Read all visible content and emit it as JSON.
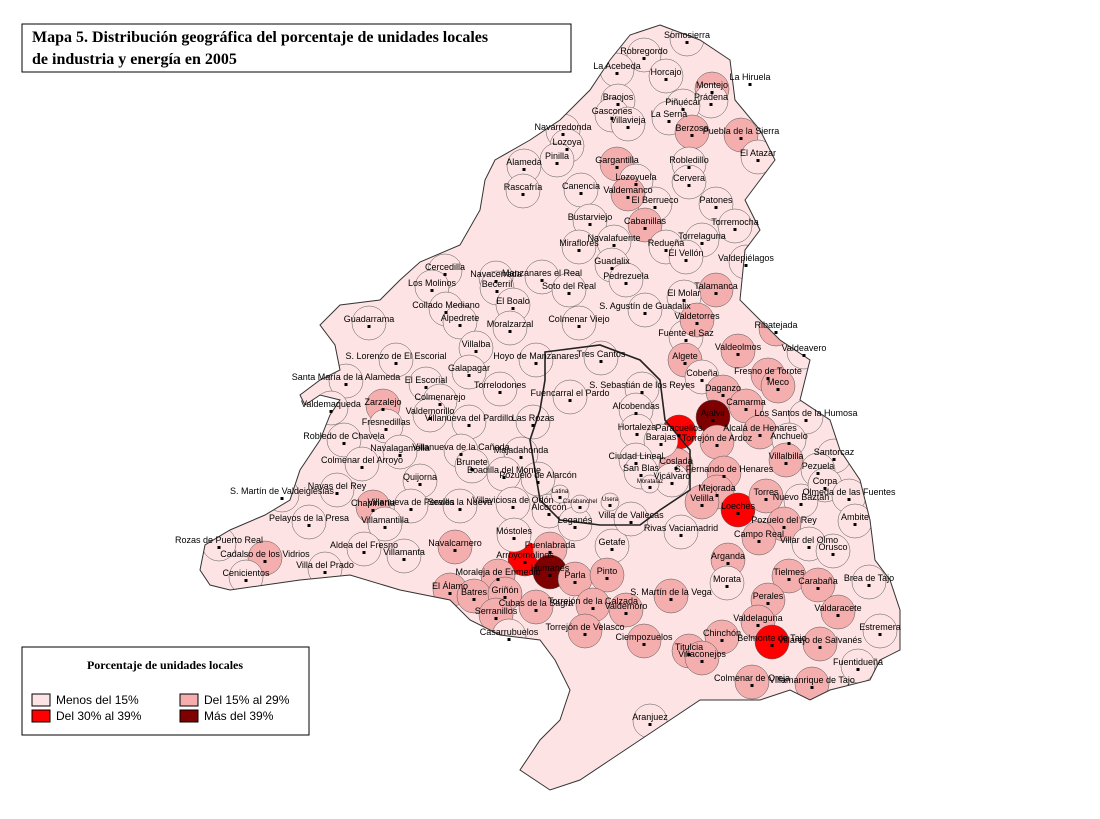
{
  "title": [
    "Mapa 5. Distribución geográfica del porcentaje de unidades locales",
    "de industria y energía en 2005"
  ],
  "legend": {
    "title": "Porcentaje de unidades locales",
    "classes": [
      {
        "label": "Menos del 15%",
        "color": "#fde3e3"
      },
      {
        "label": "Del 15% al 29%",
        "color": "#f5aeae"
      },
      {
        "label": "Del 30% al 39%",
        "color": "#ff0000"
      },
      {
        "label": "Más del 39%",
        "color": "#7f0000"
      }
    ]
  },
  "municipalities": [
    {
      "name": "Somosierra",
      "class": 0
    },
    {
      "name": "Robregordo",
      "class": 0
    },
    {
      "name": "La Acebeda",
      "class": 0
    },
    {
      "name": "Horcajo",
      "class": 0
    },
    {
      "name": "Braojos",
      "class": 0
    },
    {
      "name": "Montejo",
      "class": 1
    },
    {
      "name": "La Hiruela",
      "class": 0
    },
    {
      "name": "Prádena",
      "class": 0
    },
    {
      "name": "Gascones",
      "class": 0
    },
    {
      "name": "Villavieja",
      "class": 0
    },
    {
      "name": "Piñuécar",
      "class": 0
    },
    {
      "name": "La Serna",
      "class": 0
    },
    {
      "name": "Puebla de la Sierra",
      "class": 1
    },
    {
      "name": "Berzosa",
      "class": 1
    },
    {
      "name": "Navarredonda",
      "class": 0
    },
    {
      "name": "Gargantilla",
      "class": 1
    },
    {
      "name": "Lozoya",
      "class": 0
    },
    {
      "name": "Pinilla",
      "class": 0
    },
    {
      "name": "El Atazar",
      "class": 0
    },
    {
      "name": "Robledillo",
      "class": 0
    },
    {
      "name": "Alameda",
      "class": 0
    },
    {
      "name": "Cervera",
      "class": 0
    },
    {
      "name": "Lozoyuela",
      "class": 0
    },
    {
      "name": "Rascafría",
      "class": 0
    },
    {
      "name": "Canencia",
      "class": 0
    },
    {
      "name": "El Berrueco",
      "class": 0
    },
    {
      "name": "Patones",
      "class": 0
    },
    {
      "name": "Valdemanco",
      "class": 1
    },
    {
      "name": "Bustarviejo",
      "class": 0
    },
    {
      "name": "Cabanillas",
      "class": 1
    },
    {
      "name": "Torremocha",
      "class": 0
    },
    {
      "name": "Miraflores",
      "class": 0
    },
    {
      "name": "Navalafuente",
      "class": 0
    },
    {
      "name": "Redueña",
      "class": 0
    },
    {
      "name": "Torrelaguna",
      "class": 0
    },
    {
      "name": "Guadalix",
      "class": 0
    },
    {
      "name": "El Vellón",
      "class": 0
    },
    {
      "name": "Valdepiélagos",
      "class": 0
    },
    {
      "name": "Pedrezuela",
      "class": 0
    },
    {
      "name": "Talamanca",
      "class": 1
    },
    {
      "name": "El Molar",
      "class": 0
    },
    {
      "name": "S. Agustín de Guadalix",
      "class": 0
    },
    {
      "name": "Cercedilla",
      "class": 0
    },
    {
      "name": "Navacerrada",
      "class": 0
    },
    {
      "name": "Manzanares el Real",
      "class": 0
    },
    {
      "name": "Los Molinos",
      "class": 0
    },
    {
      "name": "Becerril",
      "class": 0
    },
    {
      "name": "Soto del Real",
      "class": 0
    },
    {
      "name": "Collado Mediano",
      "class": 0
    },
    {
      "name": "El Boalo",
      "class": 0
    },
    {
      "name": "Guadarrama",
      "class": 0
    },
    {
      "name": "Alpedrete",
      "class": 0
    },
    {
      "name": "Moralzarzal",
      "class": 0
    },
    {
      "name": "Colmenar Viejo",
      "class": 0
    },
    {
      "name": "Fuente el Saz",
      "class": 0
    },
    {
      "name": "Ribatejada",
      "class": 1
    },
    {
      "name": "Valdetorres",
      "class": 1
    },
    {
      "name": "Villalba",
      "class": 0
    },
    {
      "name": "Hoyo de Manzanares",
      "class": 0
    },
    {
      "name": "Tres Cantos",
      "class": 0
    },
    {
      "name": "Algete",
      "class": 1
    },
    {
      "name": "Valdeolmos",
      "class": 1
    },
    {
      "name": "Valdeavero",
      "class": 0
    },
    {
      "name": "S. Lorenzo de El Escorial",
      "class": 0
    },
    {
      "name": "Galapagar",
      "class": 0
    },
    {
      "name": "Santa María de la Alameda",
      "class": 0
    },
    {
      "name": "El Escorial",
      "class": 0
    },
    {
      "name": "Torrelodones",
      "class": 0
    },
    {
      "name": "Fuencarral el Pardo",
      "class": 0
    },
    {
      "name": "S. Sebastián de los Reyes",
      "class": 0
    },
    {
      "name": "Cobeña",
      "class": 0
    },
    {
      "name": "Fresno de Torote",
      "class": 1
    },
    {
      "name": "Daganzo",
      "class": 1
    },
    {
      "name": "Meco",
      "class": 1
    },
    {
      "name": "Valdemaqueda",
      "class": 0
    },
    {
      "name": "Zarzalejo",
      "class": 1
    },
    {
      "name": "Colmenarejo",
      "class": 0
    },
    {
      "name": "Alcobendas",
      "class": 0
    },
    {
      "name": "Ajalvir",
      "class": 3
    },
    {
      "name": "Camarma",
      "class": 1
    },
    {
      "name": "Valdemorillo",
      "class": 0
    },
    {
      "name": "Villanueva del Pardillo",
      "class": 0
    },
    {
      "name": "Las Rozas",
      "class": 0
    },
    {
      "name": "Fresnedillas",
      "class": 0
    },
    {
      "name": "Los Santos de la Humosa",
      "class": 0
    },
    {
      "name": "Paracuellos",
      "class": 2
    },
    {
      "name": "Alcalá de Henares",
      "class": 1
    },
    {
      "name": "Robledo de Chavela",
      "class": 0
    },
    {
      "name": "Navalagamella",
      "class": 0
    },
    {
      "name": "Villanueva de la Cañada",
      "class": 0
    },
    {
      "name": "Majadahonda",
      "class": 0
    },
    {
      "name": "Torrejón de Ardoz",
      "class": 1
    },
    {
      "name": "Anchuelo",
      "class": 0
    },
    {
      "name": "Colmenar del Arroyo",
      "class": 0
    },
    {
      "name": "Quijorna",
      "class": 0
    },
    {
      "name": "Brunete",
      "class": 0
    },
    {
      "name": "Boadilla del Monte",
      "class": 0
    },
    {
      "name": "Pozuelo de Alarcón",
      "class": 0
    },
    {
      "name": "Coslada",
      "class": 1
    },
    {
      "name": "S. Fernando de Henares",
      "class": 1
    },
    {
      "name": "Villalbilla",
      "class": 1
    },
    {
      "name": "Santorcaz",
      "class": 0
    },
    {
      "name": "Pezuela",
      "class": 0
    },
    {
      "name": "S. Martín de Valdeiglesias",
      "class": 0
    },
    {
      "name": "Navas del Rey",
      "class": 0
    },
    {
      "name": "Chapinería",
      "class": 1
    },
    {
      "name": "Villanueva de Perales",
      "class": 0
    },
    {
      "name": "Sevilla la Nueva",
      "class": 0
    },
    {
      "name": "Villaviciosa de Odón",
      "class": 0
    },
    {
      "name": "Alcorcón",
      "class": 0
    },
    {
      "name": "Mejorada",
      "class": 1
    },
    {
      "name": "Velilla",
      "class": 1
    },
    {
      "name": "Loeches",
      "class": 2
    },
    {
      "name": "Torres",
      "class": 1
    },
    {
      "name": "Nuevo Baztán",
      "class": 0
    },
    {
      "name": "Corpa",
      "class": 0
    },
    {
      "name": "Olmeda de las Fuentes",
      "class": 0
    },
    {
      "name": "Pelayos de la Presa",
      "class": 0
    },
    {
      "name": "Villamantilla",
      "class": 0
    },
    {
      "name": "Leganés",
      "class": 0
    },
    {
      "name": "Rivas Vaciamadrid",
      "class": 0
    },
    {
      "name": "Pozuelo del Rey",
      "class": 1
    },
    {
      "name": "Ambite",
      "class": 0
    },
    {
      "name": "Rozas de Puerto Real",
      "class": 0
    },
    {
      "name": "Cadalso de los Vidrios",
      "class": 1
    },
    {
      "name": "Aldea del Fresno",
      "class": 0
    },
    {
      "name": "Navalcarnero",
      "class": 1
    },
    {
      "name": "Arroyomolinos",
      "class": 2
    },
    {
      "name": "Móstoles",
      "class": 0
    },
    {
      "name": "Fuenlabrada",
      "class": 1
    },
    {
      "name": "Getafe",
      "class": 0
    },
    {
      "name": "Campo Real",
      "class": 1
    },
    {
      "name": "Villar del Olmo",
      "class": 0
    },
    {
      "name": "Orusco",
      "class": 0
    },
    {
      "name": "Villamanta",
      "class": 0
    },
    {
      "name": "Villa del Prado",
      "class": 0
    },
    {
      "name": "Cenicientos",
      "class": 0
    },
    {
      "name": "Moraleja de Enmedio",
      "class": 1
    },
    {
      "name": "Humanes",
      "class": 3
    },
    {
      "name": "Parla",
      "class": 1
    },
    {
      "name": "Pinto",
      "class": 1
    },
    {
      "name": "Arganda",
      "class": 1
    },
    {
      "name": "Tielmes",
      "class": 1
    },
    {
      "name": "Morata",
      "class": 0
    },
    {
      "name": "Carabaña",
      "class": 1
    },
    {
      "name": "Brea de Tajo",
      "class": 0
    },
    {
      "name": "El Álamo",
      "class": 1
    },
    {
      "name": "Batres",
      "class": 1
    },
    {
      "name": "Griñón",
      "class": 1
    },
    {
      "name": "Torrejón de la Calzada",
      "class": 1
    },
    {
      "name": "S. Martín de la Vega",
      "class": 1
    },
    {
      "name": "Perales",
      "class": 1
    },
    {
      "name": "Valdaracete",
      "class": 1
    },
    {
      "name": "Cubas de la Sagra",
      "class": 1
    },
    {
      "name": "Serranillos",
      "class": 1
    },
    {
      "name": "Valdemoro",
      "class": 1
    },
    {
      "name": "Estremera",
      "class": 0
    },
    {
      "name": "Torrejón de Velasco",
      "class": 1
    },
    {
      "name": "Ciempozuelos",
      "class": 1
    },
    {
      "name": "Casarrubuelos",
      "class": 0
    },
    {
      "name": "Valdelaguna",
      "class": 1
    },
    {
      "name": "Chinchón",
      "class": 1
    },
    {
      "name": "Belmonte de Tajo",
      "class": 2
    },
    {
      "name": "Villarejo de Salvanés",
      "class": 1
    },
    {
      "name": "Titulcia",
      "class": 1
    },
    {
      "name": "Villaconejos",
      "class": 1
    },
    {
      "name": "Fuentidueña",
      "class": 0
    },
    {
      "name": "Colmenar de Oreja",
      "class": 1
    },
    {
      "name": "Villamanrique de Tajo",
      "class": 1
    },
    {
      "name": "Aranjuez",
      "class": 0
    },
    {
      "name": "Hortaleza",
      "class": 0
    },
    {
      "name": "Barajas",
      "class": 0
    },
    {
      "name": "Ciudad Lineal",
      "class": 0
    },
    {
      "name": "San Blas",
      "class": 0
    },
    {
      "name": "Vicálvaro",
      "class": 0
    },
    {
      "name": "Villa de Vallecas",
      "class": 0
    },
    {
      "name": "Latina",
      "class": 0
    },
    {
      "name": "Carabanchel",
      "class": 0
    },
    {
      "name": "Usera",
      "class": 0
    },
    {
      "name": "Moratalaz",
      "class": 0
    }
  ]
}
